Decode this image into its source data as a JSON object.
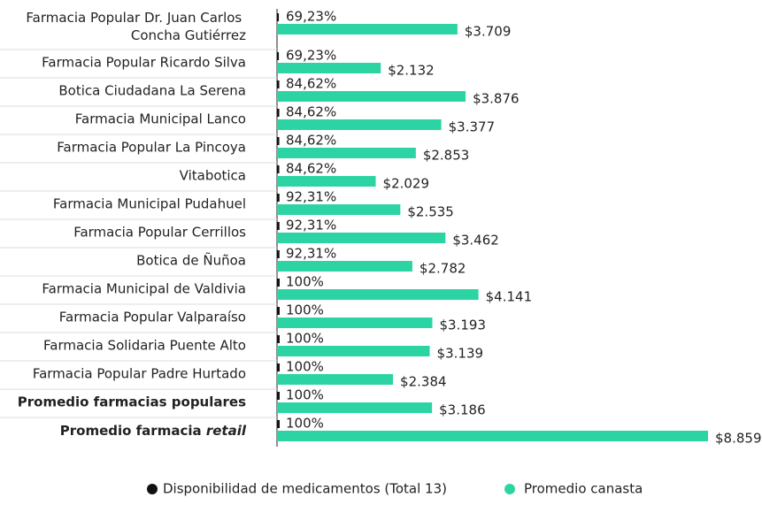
{
  "chart_data": {
    "type": "bar",
    "categories": [
      "Farmacia Popular Dr. Juan Carlos Concha Gutiérrez",
      "Farmacia Popular Ricardo Silva",
      "Botica Ciudadana La Serena",
      "Farmacia Municipal Lanco",
      "Farmacia Popular La Pincoya",
      "Vitabotica",
      "Farmacia Municipal Pudahuel",
      "Farmacia Popular Cerrillos",
      "Botica de Ñuñoa",
      "Farmacia Municipal de Valdivia",
      "Farmacia Popular Valparaíso",
      "Farmacia Solidaria Puente Alto",
      "Farmacia Popular Padre Hurtado",
      "Promedio farmacias populares",
      "Promedio farmacia retail"
    ],
    "series": [
      {
        "name": "Disponibilidad de medicamentos (Total 13)",
        "color": "#111111",
        "values": [
          69.23,
          69.23,
          84.62,
          84.62,
          84.62,
          84.62,
          92.31,
          92.31,
          92.31,
          100,
          100,
          100,
          100,
          100,
          100
        ],
        "value_labels": [
          "69,23%",
          "69,23%",
          "84,62%",
          "84,62%",
          "84,62%",
          "84,62%",
          "92,31%",
          "92,31%",
          "92,31%",
          "100%",
          "100%",
          "100%",
          "100%",
          "100%",
          "100%"
        ]
      },
      {
        "name": "Promedio canasta",
        "color": "#2dd4a3",
        "values": [
          3709,
          2132,
          3876,
          3377,
          2853,
          2029,
          2535,
          3462,
          2782,
          4141,
          3193,
          3139,
          2384,
          3186,
          8859
        ],
        "value_labels": [
          "$3.709",
          "$2.132",
          "$3.876",
          "$3.377",
          "$2.853",
          "$2.029",
          "$2.535",
          "$3.462",
          "$2.782",
          "$4.141",
          "$3.193",
          "$3.139",
          "$2.384",
          "$3.186",
          "$8.859"
        ]
      }
    ]
  }
}
